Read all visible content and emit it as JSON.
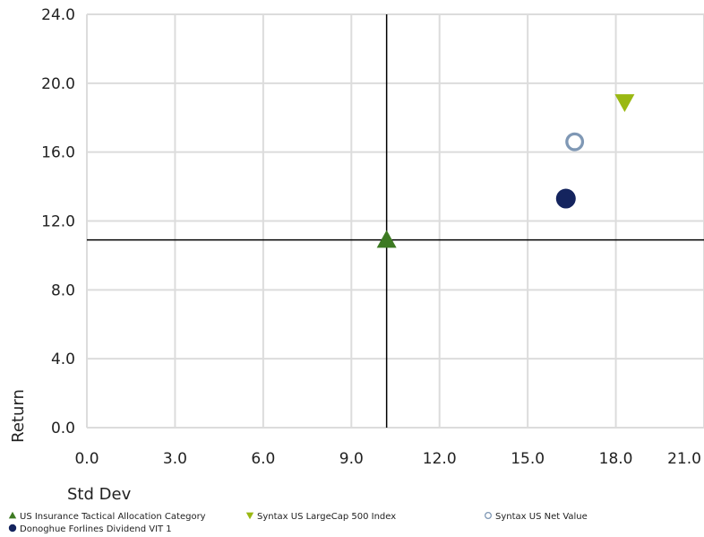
{
  "chart_data": {
    "type": "scatter",
    "xlabel": "Std Dev",
    "ylabel": "Return",
    "xlim": [
      0,
      21
    ],
    "ylim": [
      0,
      24
    ],
    "xticks": [
      "0.0",
      "3.0",
      "6.0",
      "9.0",
      "12.0",
      "15.0",
      "18.0",
      "21.0"
    ],
    "yticks": [
      "0.0",
      "4.0",
      "8.0",
      "12.0",
      "16.0",
      "20.0",
      "24.0"
    ],
    "grid": true,
    "crosshair": {
      "x": 10.2,
      "y": 10.9
    },
    "legend_position": "bottom",
    "series": [
      {
        "name": "US Insurance Tactical Allocation Category",
        "marker": "triangle-up",
        "color": "#3d7a22",
        "x": 10.2,
        "y": 10.9
      },
      {
        "name": "Syntax US LargeCap 500 Index",
        "marker": "triangle-down",
        "color": "#9ab813",
        "x": 18.3,
        "y": 18.9
      },
      {
        "name": "Syntax US Net Value",
        "marker": "circle-open",
        "color": "#7f98b5",
        "x": 16.6,
        "y": 16.6
      },
      {
        "name": "Donoghue Forlines Dividend VIT 1",
        "marker": "circle",
        "color": "#14245e",
        "x": 16.3,
        "y": 13.3
      }
    ]
  }
}
